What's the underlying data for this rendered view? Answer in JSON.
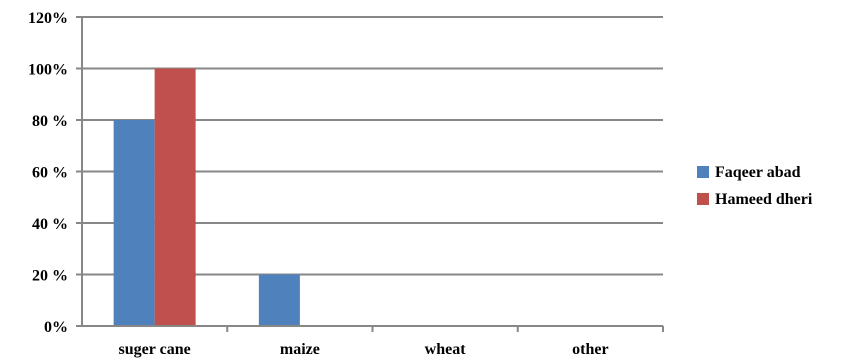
{
  "chart_data": {
    "type": "bar",
    "categories": [
      "suger cane",
      "maize",
      "wheat",
      "other"
    ],
    "series": [
      {
        "name": "Faqeer abad",
        "values": [
          80,
          20,
          0,
          0
        ],
        "color": "#4f81bd"
      },
      {
        "name": "Hameed dheri",
        "values": [
          100,
          0,
          0,
          0
        ],
        "color": "#c0504d"
      }
    ],
    "ylim": [
      0,
      120
    ],
    "yticks": [
      0,
      20,
      40,
      60,
      80,
      100,
      120
    ],
    "ytick_labels": [
      "0%",
      "20 %",
      "40 %",
      "60 %",
      "80 %",
      "100%",
      "120%"
    ],
    "grid": true,
    "legend_position": "right",
    "gridline_color": "#878787"
  }
}
